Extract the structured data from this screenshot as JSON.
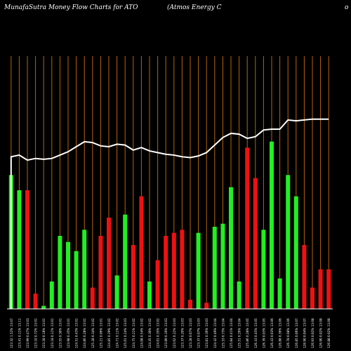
{
  "header": {
    "left_title": "MunafaSutra  Money Flow  Charts for ATO",
    "center_title": "(Atmos Energy C",
    "right_fragment": "o"
  },
  "colors": {
    "background": "#000000",
    "gridline": "#b8650a",
    "up": "#22ee22",
    "down": "#ee1111",
    "price_line": "#ffffff",
    "labels": "#ffffff"
  },
  "chart_data": {
    "type": "bar",
    "title": "MunafaSutra  Money Flow  Charts for ATO",
    "categories": [
      "123.32 1.52% 13.07",
      "123.41 0.11% 13.11",
      "123.99 0.47% 13.03",
      "123.10 0.72% 13.01",
      "123.28 0.18% 13.01",
      "123.18 0.11% 13.01",
      "123.55 0.30% 13.01",
      "123.98 0.35% 13.01",
      "124.51 0.43% 13.01",
      "124.86 0.28% 13.01",
      "125.28 0.34% 13.02",
      "125.21 0.06% 13.01",
      "124.85 0.29% 13.02",
      "124.71 0.11% 13.02",
      "125.01 0.24% 13.03",
      "124.75 0.21% 13.02",
      "124.08 0.54% 13.02",
      "124.45 0.30% 13.02",
      "124.01 0.35% 13.02",
      "123.89 0.10% 13.03",
      "123.62 0.22% 13.03",
      "123.37 0.20% 13.03",
      "123.28 0.07% 13.03",
      "123.37 0.07% 13.03",
      "123.81 0.36% 13.03",
      "124.42 0.49% 13.04",
      "125.33 0.73% 13.04",
      "125.84 0.41% 13.04",
      "125.51 0.26% 13.04",
      "125.86 0.28% 13.05",
      "126.43 0.45% 13.05",
      "126.39 0.03% 13.05",
      "126.43 0.03% 13.06",
      "126.88 0.36% 13.06",
      "126.78 0.08% 13.06",
      "126.85 0.06% 13.07",
      "126.90 0.04% 13.07",
      "126.93 0.02% 13.08",
      "126.90 0.02% 13.08",
      "126.88 0.02% 13.08"
    ],
    "values": [
      44,
      39,
      39,
      5,
      1,
      9,
      24,
      22,
      19,
      26,
      7,
      24,
      30,
      11,
      31,
      21,
      37,
      9,
      16,
      24,
      25,
      26,
      3,
      25,
      2,
      27,
      28,
      40,
      9,
      53,
      43,
      26,
      55,
      10,
      44,
      37,
      21,
      7,
      13,
      13
    ],
    "directions": [
      "up",
      "up",
      "down",
      "down",
      "up",
      "up",
      "up",
      "up",
      "up",
      "up",
      "down",
      "down",
      "down",
      "up",
      "up",
      "down",
      "down",
      "up",
      "down",
      "down",
      "down",
      "down",
      "down",
      "up",
      "down",
      "up",
      "up",
      "up",
      "up",
      "down",
      "down",
      "up",
      "up",
      "up",
      "up",
      "up",
      "down",
      "down",
      "down",
      "down"
    ],
    "price": [
      124.2,
      124.3,
      124.0,
      124.1,
      124.05,
      124.1,
      124.3,
      124.5,
      124.8,
      125.1,
      125.05,
      124.85,
      124.8,
      124.95,
      124.9,
      124.6,
      124.75,
      124.55,
      124.45,
      124.35,
      124.3,
      124.2,
      124.15,
      124.25,
      124.45,
      124.9,
      125.35,
      125.6,
      125.55,
      125.3,
      125.4,
      125.8,
      125.85,
      125.85,
      126.4,
      126.35,
      126.4,
      126.45,
      126.45,
      126.45
    ],
    "bar_range": [
      0,
      60
    ],
    "price_range": [
      118.5,
      129.5
    ],
    "grid": "vertical"
  }
}
